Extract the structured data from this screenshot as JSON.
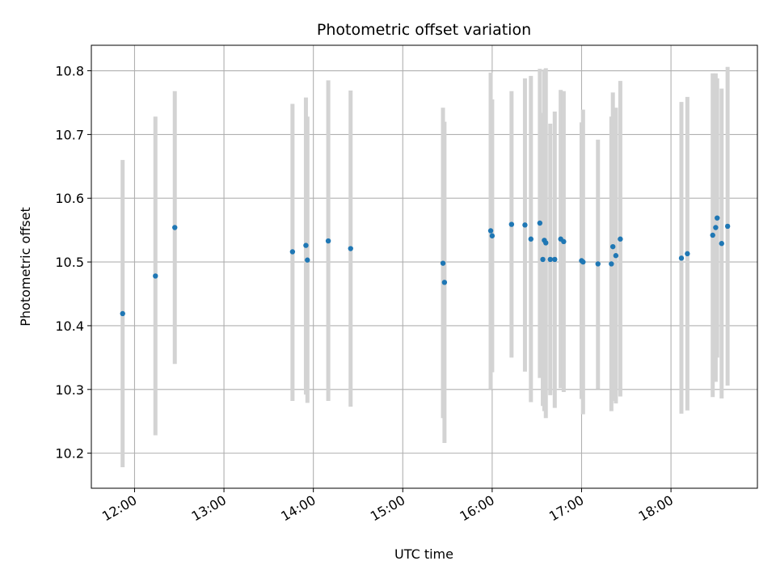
{
  "chart_data": {
    "type": "scatter",
    "title": "Photometric offset variation",
    "xlabel": "UTC time",
    "ylabel": "Photometric offset",
    "x_ticks": [
      "12:00",
      "13:00",
      "14:00",
      "15:00",
      "16:00",
      "17:00",
      "18:00"
    ],
    "y_ticks": [
      "10.2",
      "10.3",
      "10.4",
      "10.5",
      "10.6",
      "10.7",
      "10.8"
    ],
    "xlim": [
      "11:31",
      "18:58"
    ],
    "ylim": [
      10.145,
      10.84
    ],
    "grid": true,
    "legend": "none",
    "points": [
      {
        "time": "11:52",
        "y": 10.419,
        "err_low": 10.178,
        "err_high": 10.66
      },
      {
        "time": "12:14",
        "y": 10.478,
        "err_low": 10.228,
        "err_high": 10.728
      },
      {
        "time": "12:27",
        "y": 10.554,
        "err_low": 10.34,
        "err_high": 10.768
      },
      {
        "time": "13:46",
        "y": 10.516,
        "err_low": 10.282,
        "err_high": 10.748
      },
      {
        "time": "13:55",
        "y": 10.526,
        "err_low": 10.292,
        "err_high": 10.758
      },
      {
        "time": "13:56",
        "y": 10.503,
        "err_low": 10.279,
        "err_high": 10.728
      },
      {
        "time": "14:10",
        "y": 10.533,
        "err_low": 10.282,
        "err_high": 10.785
      },
      {
        "time": "14:25",
        "y": 10.521,
        "err_low": 10.273,
        "err_high": 10.769
      },
      {
        "time": "15:27",
        "y": 10.498,
        "err_low": 10.255,
        "err_high": 10.742
      },
      {
        "time": "15:28",
        "y": 10.468,
        "err_low": 10.216,
        "err_high": 10.72
      },
      {
        "time": "15:59",
        "y": 10.549,
        "err_low": 10.3,
        "err_high": 10.797
      },
      {
        "time": "16:00",
        "y": 10.541,
        "err_low": 10.327,
        "err_high": 10.755
      },
      {
        "time": "16:13",
        "y": 10.559,
        "err_low": 10.35,
        "err_high": 10.768
      },
      {
        "time": "16:22",
        "y": 10.558,
        "err_low": 10.328,
        "err_high": 10.788
      },
      {
        "time": "16:26",
        "y": 10.536,
        "err_low": 10.28,
        "err_high": 10.792
      },
      {
        "time": "16:32",
        "y": 10.561,
        "err_low": 10.318,
        "err_high": 10.803
      },
      {
        "time": "16:34",
        "y": 10.504,
        "err_low": 10.274,
        "err_high": 10.734
      },
      {
        "time": "16:35",
        "y": 10.534,
        "err_low": 10.266,
        "err_high": 10.802
      },
      {
        "time": "16:36",
        "y": 10.53,
        "err_low": 10.255,
        "err_high": 10.804
      },
      {
        "time": "16:39",
        "y": 10.504,
        "err_low": 10.291,
        "err_high": 10.717
      },
      {
        "time": "16:42",
        "y": 10.504,
        "err_low": 10.271,
        "err_high": 10.736
      },
      {
        "time": "16:46",
        "y": 10.536,
        "err_low": 10.302,
        "err_high": 10.77
      },
      {
        "time": "16:48",
        "y": 10.532,
        "err_low": 10.296,
        "err_high": 10.768
      },
      {
        "time": "17:00",
        "y": 10.502,
        "err_low": 10.285,
        "err_high": 10.719
      },
      {
        "time": "17:01",
        "y": 10.5,
        "err_low": 10.261,
        "err_high": 10.739
      },
      {
        "time": "17:11",
        "y": 10.497,
        "err_low": 10.301,
        "err_high": 10.692
      },
      {
        "time": "17:20",
        "y": 10.497,
        "err_low": 10.266,
        "err_high": 10.728
      },
      {
        "time": "17:21",
        "y": 10.524,
        "err_low": 10.282,
        "err_high": 10.766
      },
      {
        "time": "17:23",
        "y": 10.51,
        "err_low": 10.278,
        "err_high": 10.742
      },
      {
        "time": "17:26",
        "y": 10.536,
        "err_low": 10.289,
        "err_high": 10.784
      },
      {
        "time": "18:07",
        "y": 10.506,
        "err_low": 10.262,
        "err_high": 10.751
      },
      {
        "time": "18:11",
        "y": 10.513,
        "err_low": 10.267,
        "err_high": 10.759
      },
      {
        "time": "18:28",
        "y": 10.542,
        "err_low": 10.288,
        "err_high": 10.796
      },
      {
        "time": "18:30",
        "y": 10.554,
        "err_low": 10.312,
        "err_high": 10.796
      },
      {
        "time": "18:31",
        "y": 10.569,
        "err_low": 10.35,
        "err_high": 10.788
      },
      {
        "time": "18:34",
        "y": 10.529,
        "err_low": 10.286,
        "err_high": 10.772
      },
      {
        "time": "18:38",
        "y": 10.556,
        "err_low": 10.306,
        "err_high": 10.806
      }
    ]
  },
  "colors": {
    "marker": "#1f77b4",
    "errorbar": "#d3d3d3",
    "grid": "#b0b0b0",
    "axis": "#000000"
  }
}
